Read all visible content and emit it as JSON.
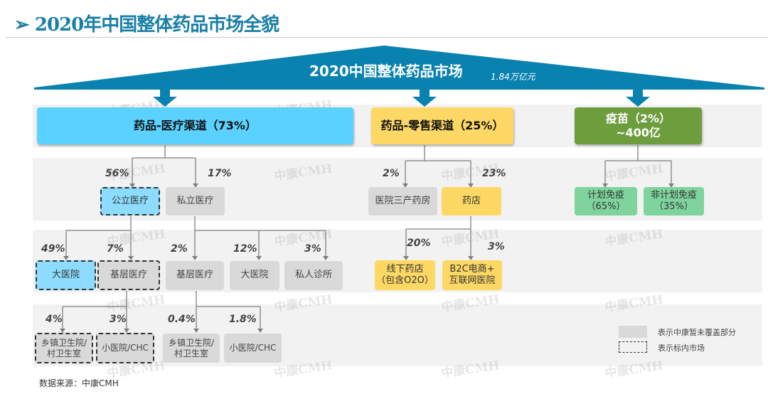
{
  "title": "2020年中国整体药品市场全貌",
  "title_marker": "➢",
  "banner": {
    "title": "2020中国整体药品市场",
    "value": "1.84万亿元"
  },
  "channels": {
    "medical": "药品-医疗渠道（73%）",
    "retail": "药品-零售渠道（25%）",
    "vaccine_line1": "疫苗（2%）",
    "vaccine_line2": "~400亿"
  },
  "medical": {
    "public": {
      "label": "公立医疗",
      "pct": "56%"
    },
    "private": {
      "label": "私立医疗",
      "pct": "17%"
    },
    "public_big": {
      "label": "大医院",
      "pct": "49%"
    },
    "public_basic": {
      "label": "基层医疗",
      "pct": "7%"
    },
    "private_basic": {
      "label": "基层医疗",
      "pct": "2%"
    },
    "private_big": {
      "label": "大医院",
      "pct": "12%"
    },
    "private_clinic": {
      "label": "私人诊所",
      "pct": "3%"
    },
    "pub_town": {
      "label": "乡镇卫生院/\n村卫生室",
      "pct": "4%"
    },
    "pub_small": {
      "label": "小医院/CHC",
      "pct": "3%"
    },
    "priv_town": {
      "label": "乡镇卫生院/\n村卫生室",
      "pct": "0.4%"
    },
    "priv_small": {
      "label": "小医院/CHC",
      "pct": "1.8%"
    }
  },
  "retail": {
    "hospital_pharmacy": {
      "label": "医院三产药房",
      "pct": "2%"
    },
    "pharmacy": {
      "label": "药店",
      "pct": "23%"
    },
    "offline": {
      "label": "线下药店\n（包含O2O）",
      "pct": "20%"
    },
    "online": {
      "label": "B2C电商+\n互联网医院",
      "pct": "3%"
    }
  },
  "vaccine": {
    "planned": {
      "label": "计划免疫\n（65%）"
    },
    "unplanned": {
      "label": "非计划免疫\n（35%）"
    }
  },
  "legend": {
    "gray": "表示中康暂未覆盖部分",
    "dashed": "表示标内市场"
  },
  "source": "数据来源：中康CMH",
  "watermark": "中康CMH",
  "colors": {
    "title": "#1a7fa6",
    "banner": "#0a82b0",
    "medical": "#5bd1ff",
    "retail": "#fdd865",
    "vaccine": "#6e9d3e",
    "vaccine_sub": "#7fd49d",
    "uncovered": "#d9d9d9"
  }
}
